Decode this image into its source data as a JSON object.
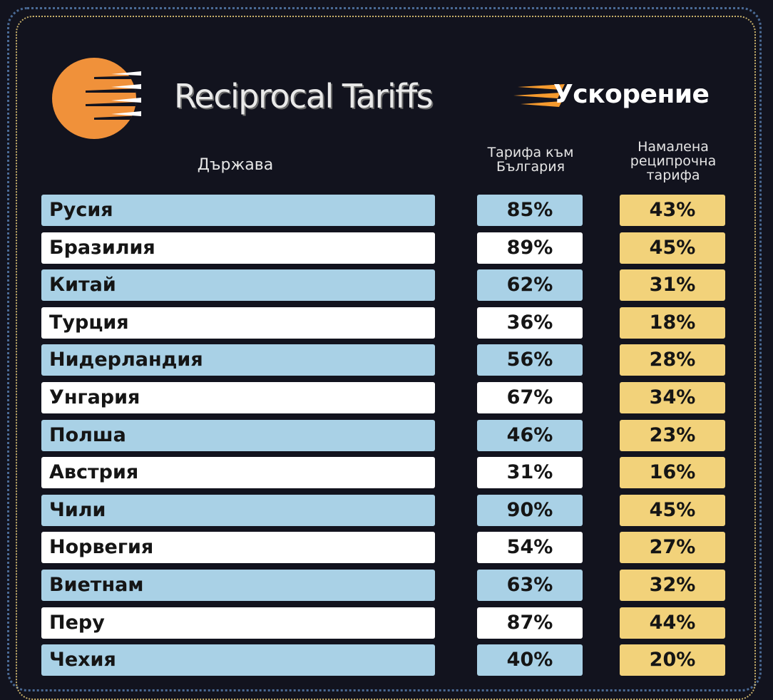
{
  "header": {
    "brand_title": "Reciprocal Tariffs",
    "accel_logo": "Ускорение",
    "col_country": "Държава",
    "col_tariff": "Тарифа към България",
    "col_reduced": "Намалена реципрочна тарифа"
  },
  "colors": {
    "background": "#12131e",
    "row_blue": "#a9d1e6",
    "row_white": "#ffffff",
    "reduced_yellow": "#f2d27a",
    "sun_orange": "#f0913a"
  },
  "icons": [
    "sun-logo-icon",
    "speed-lines-icon"
  ],
  "chart_data": {
    "type": "table",
    "title": "Reciprocal Tariffs",
    "columns": [
      "Държава",
      "Тарифа към България",
      "Намалена реципрочна тарифа"
    ],
    "rows": [
      {
        "country": "Русия",
        "tariff": "85%",
        "reduced": "43%"
      },
      {
        "country": "Бразилия",
        "tariff": "89%",
        "reduced": "45%"
      },
      {
        "country": "Китай",
        "tariff": "62%",
        "reduced": "31%"
      },
      {
        "country": "Турция",
        "tariff": "36%",
        "reduced": "18%"
      },
      {
        "country": "Нидерландия",
        "tariff": "56%",
        "reduced": "28%"
      },
      {
        "country": "Унгария",
        "tariff": "67%",
        "reduced": "34%"
      },
      {
        "country": "Полша",
        "tariff": "46%",
        "reduced": "23%"
      },
      {
        "country": "Австрия",
        "tariff": "31%",
        "reduced": "16%"
      },
      {
        "country": "Чили",
        "tariff": "90%",
        "reduced": "45%"
      },
      {
        "country": "Норвегия",
        "tariff": "54%",
        "reduced": "27%"
      },
      {
        "country": "Виетнам",
        "tariff": "63%",
        "reduced": "32%"
      },
      {
        "country": "Перу",
        "tariff": "87%",
        "reduced": "44%"
      },
      {
        "country": "Чехия",
        "tariff": "40%",
        "reduced": "20%"
      }
    ]
  }
}
